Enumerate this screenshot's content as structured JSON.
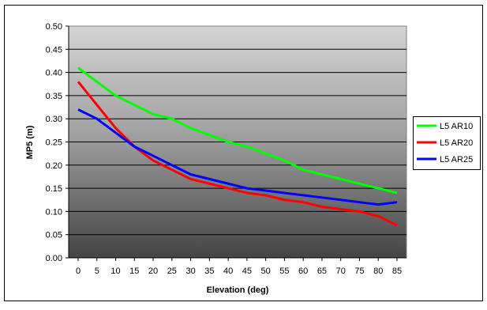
{
  "chart_data": {
    "type": "line",
    "title": "",
    "xlabel": "Elevation (deg)",
    "ylabel": "MP5 (m)",
    "x": [
      0,
      5,
      10,
      15,
      20,
      25,
      30,
      35,
      40,
      45,
      50,
      55,
      60,
      65,
      70,
      75,
      80,
      85
    ],
    "xlim": [
      0,
      85
    ],
    "ylim": [
      0,
      0.5
    ],
    "ytick_step": 0.05,
    "x_ticks": [
      "0",
      "5",
      "10",
      "15",
      "20",
      "25",
      "30",
      "35",
      "40",
      "45",
      "50",
      "55",
      "60",
      "65",
      "70",
      "75",
      "80",
      "85"
    ],
    "y_ticks": [
      "0.00",
      "0.05",
      "0.10",
      "0.15",
      "0.20",
      "0.25",
      "0.30",
      "0.35",
      "0.40",
      "0.45",
      "0.50"
    ],
    "grid": true,
    "legend_position": "right",
    "background": "gradient gray",
    "series": [
      {
        "name": "L5 AR10",
        "color": "#00ff00",
        "values": [
          0.41,
          0.38,
          0.35,
          0.33,
          0.31,
          0.3,
          0.28,
          0.265,
          0.25,
          0.24,
          0.225,
          0.21,
          0.19,
          0.18,
          0.17,
          0.16,
          0.15,
          0.14
        ]
      },
      {
        "name": "L5 AR20",
        "color": "#ff0000",
        "values": [
          0.38,
          0.33,
          0.28,
          0.24,
          0.21,
          0.19,
          0.17,
          0.16,
          0.15,
          0.14,
          0.135,
          0.125,
          0.12,
          0.11,
          0.105,
          0.1,
          0.09,
          0.07
        ]
      },
      {
        "name": "L5 AR25",
        "color": "#0000ff",
        "values": [
          0.32,
          0.3,
          0.27,
          0.24,
          0.22,
          0.2,
          0.18,
          0.17,
          0.16,
          0.15,
          0.145,
          0.14,
          0.135,
          0.13,
          0.125,
          0.12,
          0.115,
          0.12
        ]
      }
    ]
  }
}
